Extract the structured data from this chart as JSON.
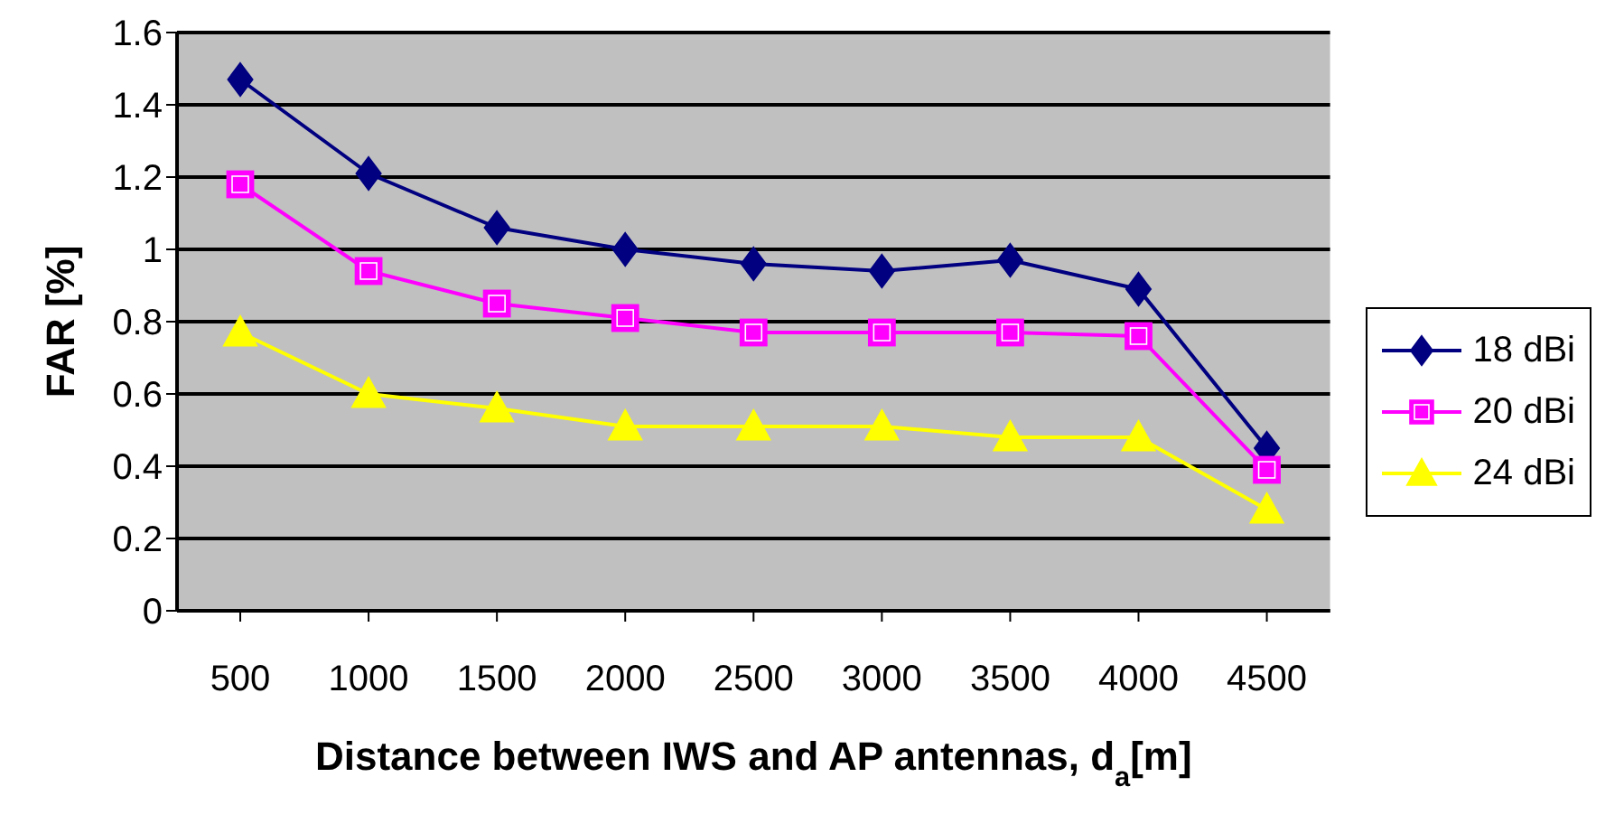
{
  "chart_data": {
    "type": "line",
    "xlabel": "Distance between IWS and AP antennas, d$_{a}$[m]",
    "ylabel": "FAR [%]",
    "categories": [
      "500",
      "1000",
      "1500",
      "2000",
      "2500",
      "3000",
      "3500",
      "4000",
      "4500"
    ],
    "ylim": [
      0,
      1.6
    ],
    "yticks": [
      0,
      0.2,
      0.4,
      0.6,
      0.8,
      1,
      1.2,
      1.4,
      1.6
    ],
    "grid": "y",
    "legend": "right",
    "series": [
      {
        "name": "18 dBi",
        "color": "#000080",
        "marker": "diamond",
        "values": [
          1.47,
          1.21,
          1.06,
          1.0,
          0.96,
          0.94,
          0.97,
          0.89,
          0.45
        ]
      },
      {
        "name": "20 dBi",
        "color": "#ff00ff",
        "marker": "square",
        "values": [
          1.18,
          0.94,
          0.85,
          0.81,
          0.77,
          0.77,
          0.77,
          0.76,
          0.39
        ]
      },
      {
        "name": "24 dBi",
        "color": "#ffff00",
        "marker": "triangle",
        "values": [
          0.77,
          0.6,
          0.56,
          0.51,
          0.51,
          0.51,
          0.48,
          0.48,
          0.28
        ]
      }
    ]
  }
}
